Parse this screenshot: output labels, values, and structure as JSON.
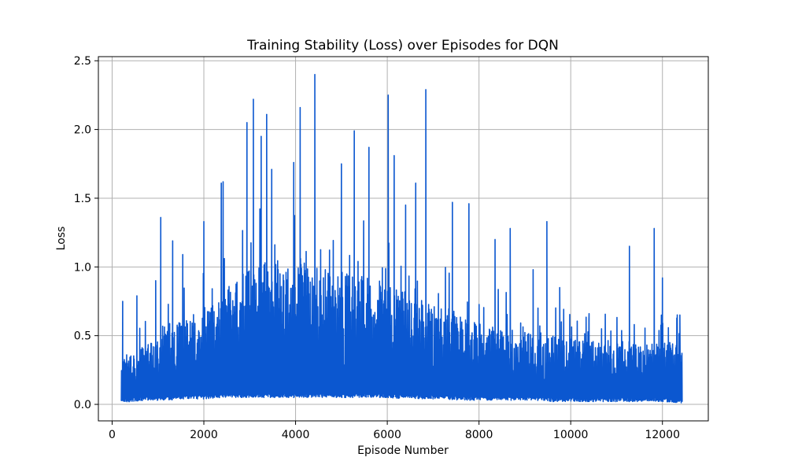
{
  "chart_data": {
    "type": "line",
    "title": "Training Stability (Loss) over Episodes for DQN",
    "xlabel": "Episode Number",
    "ylabel": "Loss",
    "xlim": [
      -300,
      13000
    ],
    "ylim": [
      -0.12,
      2.53
    ],
    "x_ticks": [
      0,
      2000,
      4000,
      6000,
      8000,
      10000,
      12000
    ],
    "x_tick_labels": [
      "0",
      "2000",
      "4000",
      "6000",
      "8000",
      "10000",
      "12000"
    ],
    "y_ticks": [
      0.0,
      0.5,
      1.0,
      1.5,
      2.0,
      2.5
    ],
    "y_tick_labels": [
      "0.0",
      "0.5",
      "1.0",
      "1.5",
      "2.0",
      "2.5"
    ],
    "grid": true,
    "series": [
      {
        "color": "#0b57d0",
        "x_start": 200,
        "x_end": 12430,
        "envelope_x": [
          200,
          400,
          800,
          1200,
          1600,
          2000,
          2400,
          2800,
          3200,
          3600,
          4000,
          4400,
          4800,
          5200,
          5600,
          6000,
          6400,
          6800,
          7200,
          7600,
          8000,
          8400,
          8800,
          9200,
          9600,
          10000,
          10400,
          10800,
          11200,
          11600,
          12000,
          12430
        ],
        "envelope_upper": [
          0.3,
          0.35,
          0.45,
          0.55,
          0.62,
          0.72,
          0.85,
          0.95,
          1.02,
          1.05,
          1.05,
          1.02,
          0.98,
          0.95,
          0.92,
          0.88,
          0.82,
          0.78,
          0.72,
          0.66,
          0.62,
          0.58,
          0.55,
          0.52,
          0.5,
          0.48,
          0.47,
          0.46,
          0.46,
          0.45,
          0.45,
          0.45
        ],
        "envelope_lower": [
          0.01,
          0.02,
          0.03,
          0.03,
          0.04,
          0.04,
          0.05,
          0.05,
          0.05,
          0.05,
          0.05,
          0.05,
          0.05,
          0.05,
          0.05,
          0.05,
          0.04,
          0.04,
          0.04,
          0.03,
          0.03,
          0.03,
          0.03,
          0.03,
          0.02,
          0.02,
          0.02,
          0.02,
          0.02,
          0.02,
          0.02,
          0.01
        ],
        "peaks": [
          {
            "x": 230,
            "y": 0.75
          },
          {
            "x": 540,
            "y": 0.79
          },
          {
            "x": 950,
            "y": 0.9
          },
          {
            "x": 1060,
            "y": 1.36
          },
          {
            "x": 1320,
            "y": 1.19
          },
          {
            "x": 1540,
            "y": 1.09
          },
          {
            "x": 2000,
            "y": 1.33
          },
          {
            "x": 2380,
            "y": 1.61
          },
          {
            "x": 2420,
            "y": 1.62
          },
          {
            "x": 2940,
            "y": 2.05
          },
          {
            "x": 3080,
            "y": 2.22
          },
          {
            "x": 3250,
            "y": 1.95
          },
          {
            "x": 3370,
            "y": 2.11
          },
          {
            "x": 3480,
            "y": 1.71
          },
          {
            "x": 3960,
            "y": 1.76
          },
          {
            "x": 4100,
            "y": 2.16
          },
          {
            "x": 4420,
            "y": 2.4
          },
          {
            "x": 5000,
            "y": 1.75
          },
          {
            "x": 5280,
            "y": 1.99
          },
          {
            "x": 5600,
            "y": 1.87
          },
          {
            "x": 6020,
            "y": 2.25
          },
          {
            "x": 6150,
            "y": 1.81
          },
          {
            "x": 6400,
            "y": 1.45
          },
          {
            "x": 6620,
            "y": 1.61
          },
          {
            "x": 6840,
            "y": 2.29
          },
          {
            "x": 7420,
            "y": 1.47
          },
          {
            "x": 7780,
            "y": 1.46
          },
          {
            "x": 8350,
            "y": 1.2
          },
          {
            "x": 8680,
            "y": 1.28
          },
          {
            "x": 9180,
            "y": 0.98
          },
          {
            "x": 9480,
            "y": 1.33
          },
          {
            "x": 9760,
            "y": 0.85
          },
          {
            "x": 10400,
            "y": 0.66
          },
          {
            "x": 11280,
            "y": 1.15
          },
          {
            "x": 11820,
            "y": 1.28
          },
          {
            "x": 12000,
            "y": 0.92
          },
          {
            "x": 12380,
            "y": 0.65
          }
        ]
      }
    ]
  }
}
